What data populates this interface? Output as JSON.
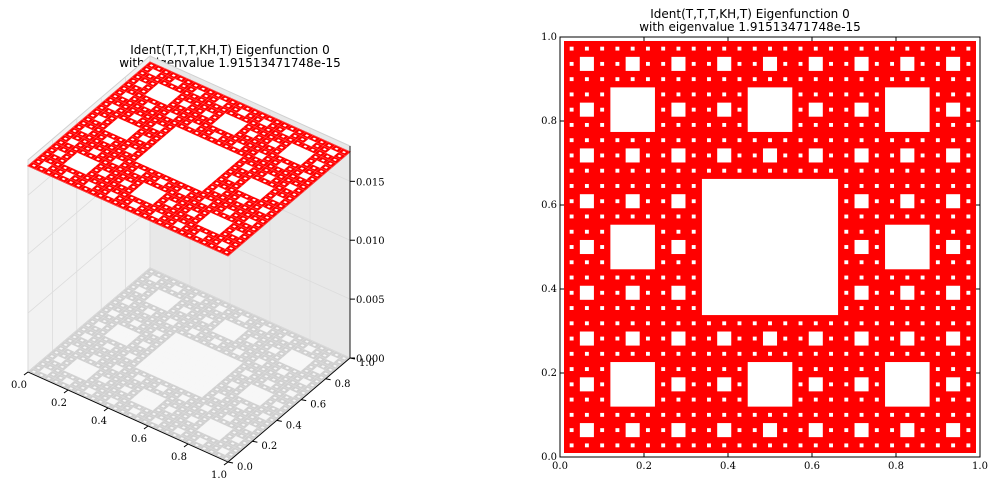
{
  "chart_data": [
    {
      "type": "surface3d",
      "title_line1": "Ident(T,T,T,KH,T) Eigenfunction 0",
      "title_line2": "with eigenvalue 1.91513471748e-15",
      "surface_value": 0.0175,
      "x_ticks": [
        "0.0",
        "0.2",
        "0.4",
        "0.6",
        "0.8",
        "1.0"
      ],
      "y_ticks": [
        "0.0",
        "0.2",
        "0.4",
        "0.6",
        "0.8",
        "1.0"
      ],
      "z_ticks": [
        "0.000",
        "0.005",
        "0.010",
        "0.015"
      ],
      "xlim": [
        0,
        1
      ],
      "ylim": [
        0,
        1
      ],
      "zlim": [
        0,
        0.018
      ],
      "surface_color": "#ff0000",
      "shadow_color": "#d0d0d0",
      "fractal": "Sierpinski carpet",
      "fractal_level": 4,
      "grid": true
    },
    {
      "type": "heatmap",
      "title_line1": "Ident(T,T,T,KH,T) Eigenfunction 0",
      "title_line2": "with eigenvalue 1.91513471748e-15",
      "x_ticks": [
        "0.0",
        "0.2",
        "0.4",
        "0.6",
        "0.8",
        "1.0"
      ],
      "y_ticks": [
        "0.0",
        "0.2",
        "0.4",
        "0.6",
        "0.8",
        "1.0"
      ],
      "xlim": [
        0,
        1
      ],
      "ylim": [
        0,
        1
      ],
      "fill_color": "#ff0000",
      "fractal": "Sierpinski carpet",
      "fractal_level": 4
    }
  ]
}
